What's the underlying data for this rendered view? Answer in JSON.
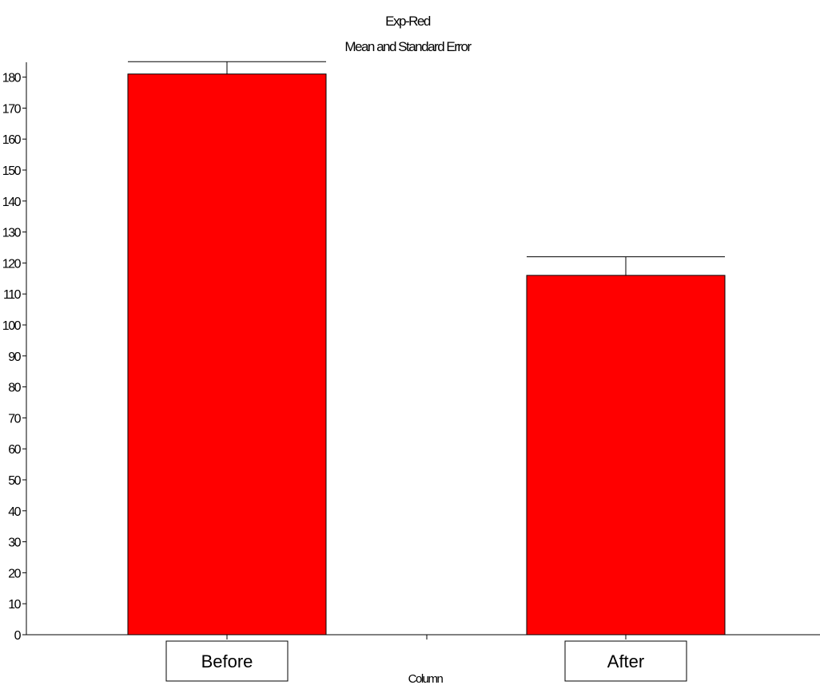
{
  "chart_data": {
    "type": "bar",
    "title": "Exp-Red",
    "subtitle": "Mean and Standard Error",
    "xlabel": "Column",
    "ylabel": "",
    "categories": [
      "Before",
      "After"
    ],
    "values": [
      181,
      116
    ],
    "errors": [
      4,
      6
    ],
    "ylim": [
      0,
      185
    ],
    "yticks": [
      0,
      10,
      20,
      30,
      40,
      50,
      60,
      70,
      80,
      90,
      100,
      110,
      120,
      130,
      140,
      150,
      160,
      170,
      180
    ],
    "bar_color": "#ff0000",
    "grid": false,
    "legend": "none"
  }
}
